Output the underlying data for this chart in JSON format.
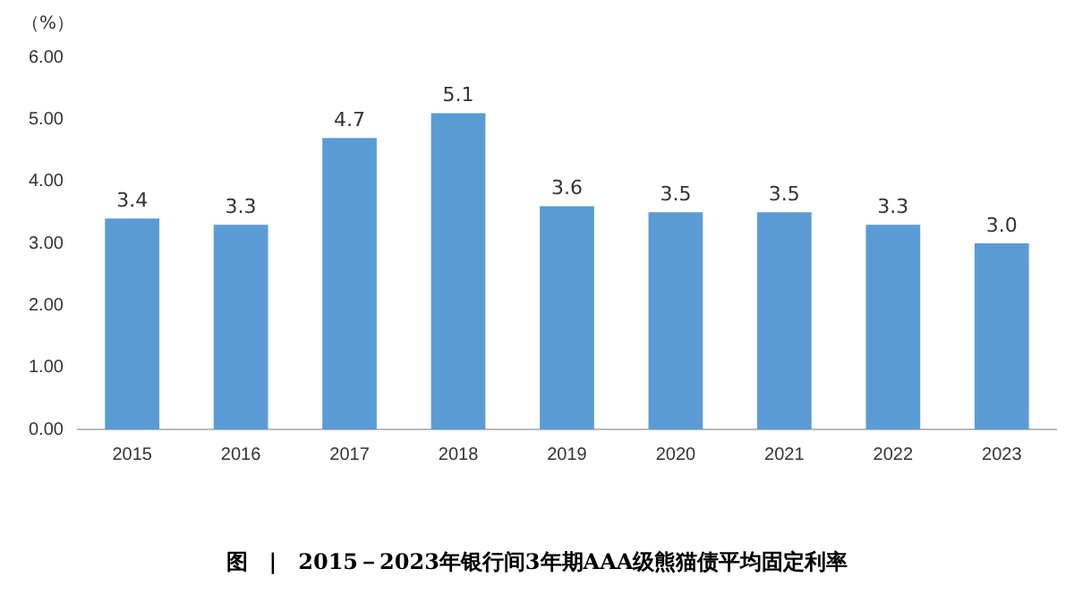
{
  "chart_data": {
    "type": "bar",
    "title": "图　|　2015－2023年银行间3年期AAA级熊猫债平均固定利率",
    "ylabel": "（%）",
    "categories": [
      "2015",
      "2016",
      "2017",
      "2018",
      "2019",
      "2020",
      "2021",
      "2022",
      "2023"
    ],
    "values": [
      3.4,
      3.3,
      4.7,
      5.1,
      3.6,
      3.5,
      3.5,
      3.3,
      3.0
    ],
    "value_labels": [
      "3.4",
      "3.3",
      "4.7",
      "5.1",
      "3.6",
      "3.5",
      "3.5",
      "3.3",
      "3.0"
    ],
    "color": "#5b9bd5",
    "ylim": [
      0,
      6
    ],
    "yticks": [
      {
        "value": 0,
        "label": "0.00"
      },
      {
        "value": 1,
        "label": "1.00"
      },
      {
        "value": 2,
        "label": "2.00"
      },
      {
        "value": 3,
        "label": "3.00"
      },
      {
        "value": 4,
        "label": "4.00"
      },
      {
        "value": 5,
        "label": "5.00"
      },
      {
        "value": 6,
        "label": "6.00"
      }
    ],
    "grid": false
  }
}
